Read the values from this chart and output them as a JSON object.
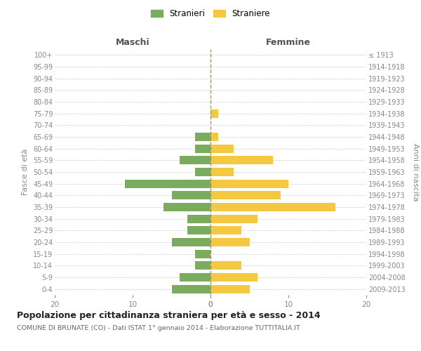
{
  "age_groups": [
    "0-4",
    "5-9",
    "10-14",
    "15-19",
    "20-24",
    "25-29",
    "30-34",
    "35-39",
    "40-44",
    "45-49",
    "50-54",
    "55-59",
    "60-64",
    "65-69",
    "70-74",
    "75-79",
    "80-84",
    "85-89",
    "90-94",
    "95-99",
    "100+"
  ],
  "birth_years": [
    "2009-2013",
    "2004-2008",
    "1999-2003",
    "1994-1998",
    "1989-1993",
    "1984-1988",
    "1979-1983",
    "1974-1978",
    "1969-1973",
    "1964-1968",
    "1959-1963",
    "1954-1958",
    "1949-1953",
    "1944-1948",
    "1939-1943",
    "1934-1938",
    "1929-1933",
    "1924-1928",
    "1919-1923",
    "1914-1918",
    "≤ 1913"
  ],
  "maschi": [
    5,
    4,
    2,
    2,
    5,
    3,
    3,
    6,
    5,
    11,
    2,
    4,
    2,
    2,
    0,
    0,
    0,
    0,
    0,
    0,
    0
  ],
  "femmine": [
    5,
    6,
    4,
    0,
    5,
    4,
    6,
    16,
    9,
    10,
    3,
    8,
    3,
    1,
    0,
    1,
    0,
    0,
    0,
    0,
    0
  ],
  "maschi_color": "#7aab5e",
  "femmine_color": "#f5c842",
  "background_color": "#ffffff",
  "grid_color": "#cccccc",
  "title": "Popolazione per cittadinanza straniera per età e sesso - 2014",
  "subtitle": "COMUNE DI BRUNATE (CO) - Dati ISTAT 1° gennaio 2014 - Elaborazione TUTTITALIA.IT",
  "ylabel_left": "Fasce di età",
  "ylabel_right": "Anni di nascita",
  "header_left": "Maschi",
  "header_right": "Femmine",
  "legend_maschi": "Stranieri",
  "legend_femmine": "Straniere",
  "xlim": 20,
  "tick_color": "#888888",
  "label_color": "#888888",
  "center_line_color": "#999966"
}
